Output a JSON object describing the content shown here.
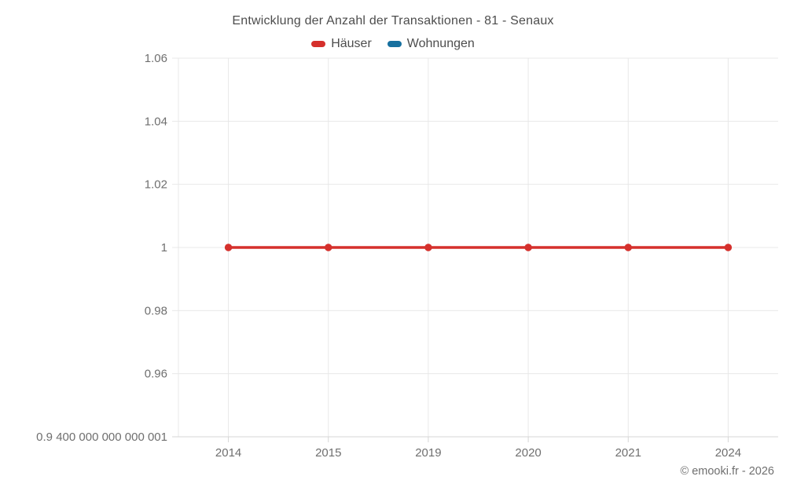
{
  "footer": "© emooki.fr - 2026",
  "chart_data": {
    "type": "line",
    "title": "Entwicklung der Anzahl der Transaktionen - 81 - Senaux",
    "categories": [
      "2014",
      "2015",
      "2019",
      "2020",
      "2021",
      "2024"
    ],
    "series": [
      {
        "name": "Häuser",
        "color": "#d5302c",
        "values": [
          1,
          1,
          1,
          1,
          1,
          1
        ]
      },
      {
        "name": "Wohnungen",
        "color": "#17709f",
        "values": []
      }
    ],
    "y_ticks": [
      {
        "value": 1.06,
        "label": "1.06"
      },
      {
        "value": 1.04,
        "label": "1.04"
      },
      {
        "value": 1.02,
        "label": "1.02"
      },
      {
        "value": 1.0,
        "label": "1"
      },
      {
        "value": 0.98,
        "label": "0.98"
      },
      {
        "value": 0.96,
        "label": "0.96"
      },
      {
        "value": 0.94,
        "label": "0.9 400 000 000 000 001"
      }
    ],
    "ylim": [
      0.94,
      1.06
    ],
    "xlabel": "",
    "ylabel": "",
    "grid": true,
    "legend_position": "top"
  }
}
